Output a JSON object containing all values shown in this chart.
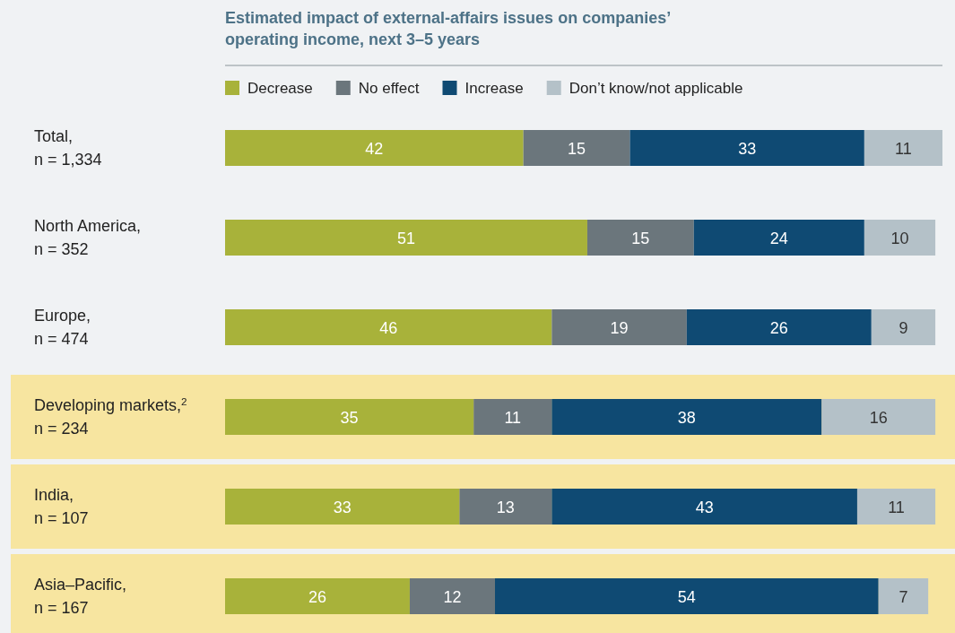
{
  "chart_data": {
    "type": "bar",
    "orientation": "horizontal",
    "stacked": true,
    "title": "Estimated impact of external-affairs issues on companies’ operating income, next 3–5 years",
    "categories": [
      "Total,\nn = 1,334",
      "North America,\nn = 352",
      "Europe,\nn = 474",
      "Developing markets,$^{2}$\nn = 234",
      "India,\nn = 107",
      "Asia–Pacific,\nn = 167"
    ],
    "series": [
      {
        "name": "Decrease",
        "color": "#a8b23a",
        "values": [
          42,
          51,
          46,
          35,
          33,
          26
        ]
      },
      {
        "name": "No effect",
        "color": "#6b767c",
        "values": [
          15,
          15,
          19,
          11,
          13,
          12
        ]
      },
      {
        "name": "Increase",
        "color": "#0f4a73",
        "values": [
          33,
          24,
          26,
          38,
          43,
          54
        ]
      },
      {
        "name": "Don’t know/not applicable",
        "color": "#b4c1c8",
        "values": [
          11,
          10,
          9,
          16,
          11,
          7
        ]
      }
    ],
    "xlim": [
      0,
      101
    ],
    "tick_labels": false,
    "data_labels": true,
    "legend": "top left",
    "bands": [
      {
        "axis": "y",
        "from": "Developing markets,$^{2}$\nn = 234",
        "to": "Developing markets,$^{2}$\nn = 234",
        "color": "#f7e5a0"
      },
      {
        "axis": "y",
        "from": "India,\nn = 107",
        "to": "India,\nn = 107",
        "color": "#f7e5a0"
      },
      {
        "axis": "y",
        "from": "Asia–Pacific,\nn = 167",
        "to": "Asia–Pacific,\nn = 167",
        "color": "#f7e5a0"
      }
    ]
  }
}
